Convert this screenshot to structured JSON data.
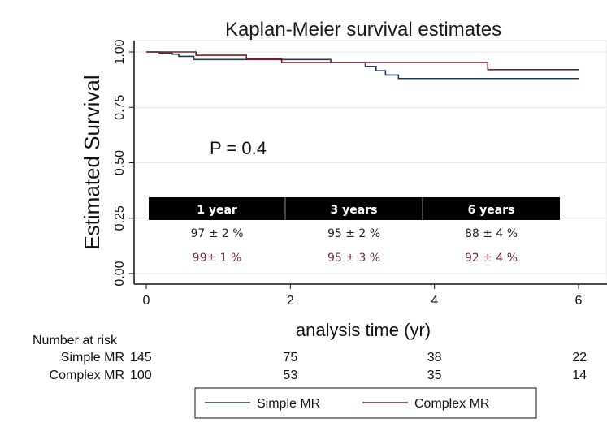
{
  "chart_data": {
    "type": "line",
    "title": "Kaplan-Meier survival estimates",
    "xlabel": "analysis time (yr)",
    "ylabel": "Estimated Survival",
    "xlim": [
      0,
      6
    ],
    "ylim": [
      0,
      1
    ],
    "xticks": [
      "0",
      "2",
      "4",
      "6"
    ],
    "yticks": [
      "0.00",
      "0.25",
      "0.50",
      "0.75",
      "1.00"
    ],
    "grid": true,
    "annotation": "P = 0.4",
    "series": [
      {
        "name": "Simple MR",
        "color": "#1f3a5f",
        "steps": [
          [
            0,
            1.0
          ],
          [
            0.18,
            0.995
          ],
          [
            0.36,
            0.99
          ],
          [
            0.45,
            0.98
          ],
          [
            0.66,
            0.966
          ],
          [
            2.56,
            0.952
          ],
          [
            3.04,
            0.935
          ],
          [
            3.19,
            0.915
          ],
          [
            3.32,
            0.896
          ],
          [
            3.5,
            0.88
          ],
          [
            6,
            0.88
          ]
        ]
      },
      {
        "name": "Complex MR",
        "color": "#7a1f24",
        "steps": [
          [
            0,
            1.0
          ],
          [
            0.69,
            0.985
          ],
          [
            1.39,
            0.97
          ],
          [
            1.88,
            0.952
          ],
          [
            4.74,
            0.92
          ],
          [
            6,
            0.92
          ]
        ]
      }
    ],
    "table": {
      "headers": [
        "1 year",
        "3 years",
        "6 years"
      ],
      "rows": [
        {
          "color": "#222222",
          "values": [
            "97 ± 2 %",
            "95 ± 2 %",
            "88 ± 4 %"
          ]
        },
        {
          "color": "#7a2a35",
          "values": [
            "99± 1 %",
            "95 ± 3 %",
            "92 ± 4 %"
          ]
        }
      ]
    },
    "risk_table": {
      "title": "Number at risk",
      "rows": [
        {
          "label": "Simple MR",
          "values": [
            "145",
            "75",
            "38",
            "22"
          ]
        },
        {
          "label": "Complex MR",
          "values": [
            "100",
            "53",
            "35",
            "14"
          ]
        }
      ]
    },
    "legend": {
      "placement": "bottom",
      "entries": [
        "Simple MR",
        "Complex MR"
      ]
    }
  }
}
